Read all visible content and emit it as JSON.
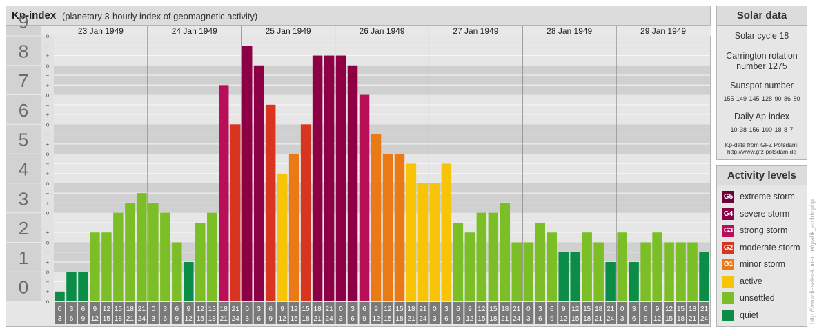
{
  "header": {
    "title": "Kp-index",
    "subtitle": "(planetary 3-hourly index of geomagnetic activity)"
  },
  "chart_data": {
    "type": "bar",
    "y_ticks": [
      "0",
      "1",
      "2",
      "3",
      "4",
      "5",
      "6",
      "7",
      "8",
      "9"
    ],
    "minor_labels": [
      "+",
      "−",
      "o"
    ],
    "ylim": [
      0,
      9
    ],
    "days": [
      "23 Jan 1949",
      "24 Jan 1949",
      "25 Jan 1949",
      "26 Jan 1949",
      "27 Jan 1949",
      "28 Jan 1949",
      "29 Jan 1949"
    ],
    "intervals": [
      [
        "0",
        "3"
      ],
      [
        "3",
        "6"
      ],
      [
        "6",
        "9"
      ],
      [
        "9",
        "12"
      ],
      [
        "12",
        "15"
      ],
      [
        "15",
        "18"
      ],
      [
        "18",
        "21"
      ],
      [
        "21",
        "24"
      ]
    ],
    "values": [
      0.333,
      1.0,
      1.0,
      2.333,
      2.333,
      3.0,
      3.333,
      3.667,
      3.333,
      3.0,
      2.0,
      1.333,
      2.667,
      3.0,
      7.333,
      6.0,
      8.667,
      8.0,
      6.667,
      4.333,
      5.0,
      6.0,
      8.333,
      8.333,
      8.333,
      8.0,
      7.0,
      5.667,
      5.0,
      5.0,
      4.667,
      4.0,
      4.0,
      4.667,
      2.667,
      2.333,
      3.0,
      3.0,
      3.333,
      2.0,
      2.0,
      2.667,
      2.333,
      1.667,
      1.667,
      2.333,
      2.0,
      1.333,
      2.333,
      1.333,
      2.0,
      2.333,
      2.0,
      2.0,
      2.0,
      1.667
    ]
  },
  "solar_data": {
    "title": "Solar data",
    "cycle": "Solar cycle 18",
    "carrington_1": "Carrington rotation",
    "carrington_2": "number 1275",
    "sunspot_label": "Sunspot number",
    "sunspot_values": "155 149 145 128 90 86 80",
    "ap_label": "Daily Ap-index",
    "ap_values": "10 38 156 100 18 8 7",
    "source_1": "Kp-data from GFZ Potsdam:",
    "source_2": "http://www.gfz-potsdam.de"
  },
  "activity_levels": {
    "title": "Activity levels",
    "items": [
      {
        "code": "G5",
        "label": "extreme storm",
        "color": "#6d0038"
      },
      {
        "code": "G4",
        "label": "severe storm",
        "color": "#8e0046"
      },
      {
        "code": "G3",
        "label": "strong storm",
        "color": "#b90e58"
      },
      {
        "code": "G2",
        "label": "moderate storm",
        "color": "#d8341f"
      },
      {
        "code": "G1",
        "label": "minor storm",
        "color": "#ea7a16"
      },
      {
        "code": "",
        "label": "active",
        "color": "#f7c408"
      },
      {
        "code": "",
        "label": "unsettled",
        "color": "#7cbe25"
      },
      {
        "code": "",
        "label": "quiet",
        "color": "#0b8d48"
      }
    ]
  },
  "watermark": "http://www.fieseler-kurier.de/grafik_archiv.php"
}
